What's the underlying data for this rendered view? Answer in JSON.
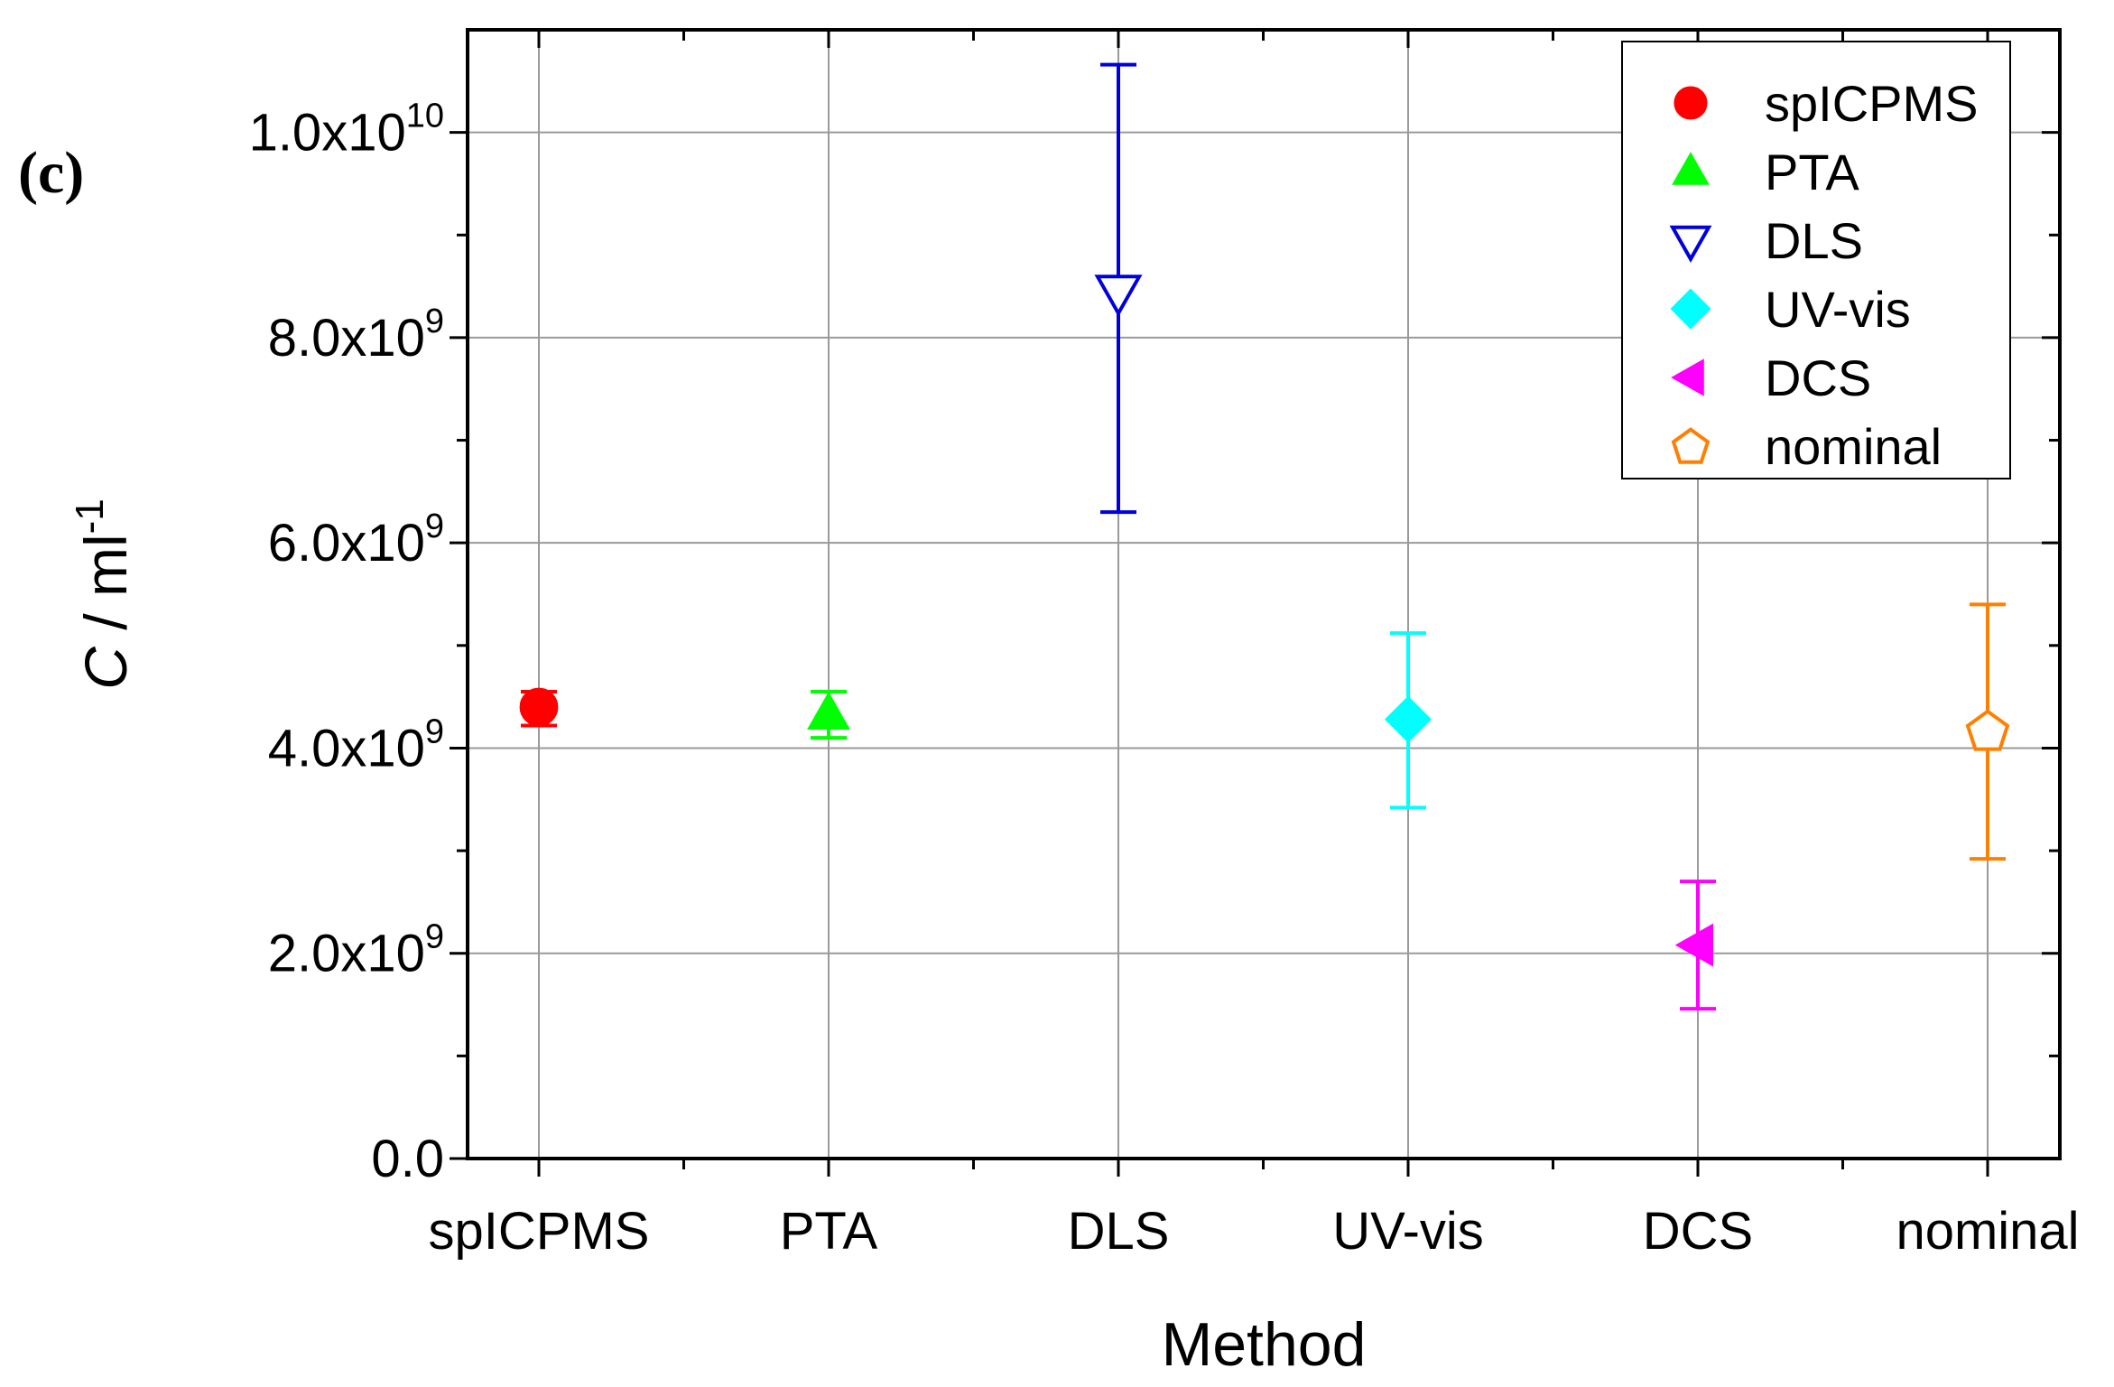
{
  "panel_label": "(c)",
  "chart_data": {
    "type": "scatter",
    "title": "",
    "xlabel": "Method",
    "ylabel_main": "C",
    "ylabel_unit": " / ml",
    "ylabel_sup": "-1",
    "ylim": [
      0,
      11000000000.0
    ],
    "grid": true,
    "legend_position": "top-right",
    "categories": [
      "spICPMS",
      "PTA",
      "DLS",
      "UV-vis",
      "DCS",
      "nominal"
    ],
    "y_ticks": [
      {
        "value": 0,
        "mantissa": "0.0",
        "exp": ""
      },
      {
        "value": 2000000000.0,
        "mantissa": "2.0x10",
        "exp": "9"
      },
      {
        "value": 4000000000.0,
        "mantissa": "4.0x10",
        "exp": "9"
      },
      {
        "value": 6000000000.0,
        "mantissa": "6.0x10",
        "exp": "9"
      },
      {
        "value": 8000000000.0,
        "mantissa": "8.0x10",
        "exp": "9"
      },
      {
        "value": 10000000000.0,
        "mantissa": "1.0x10",
        "exp": "10"
      }
    ],
    "series": [
      {
        "name": "spICPMS",
        "value": 4400000000.0,
        "err_low": 4220000000.0,
        "err_high": 4550000000.0,
        "color": "#ff0000",
        "marker": "circle",
        "filled": true
      },
      {
        "name": "PTA",
        "value": 4330000000.0,
        "err_low": 4100000000.0,
        "err_high": 4550000000.0,
        "color": "#00ff00",
        "marker": "triangle-up",
        "filled": true
      },
      {
        "name": "DLS",
        "value": 8450000000.0,
        "err_low": 6300000000.0,
        "err_high": 10660000000.0,
        "color": "#0000dd",
        "marker": "triangle-down",
        "filled": false
      },
      {
        "name": "UV-vis",
        "value": 4280000000.0,
        "err_low": 3420000000.0,
        "err_high": 5120000000.0,
        "color": "#00ffff",
        "marker": "diamond",
        "filled": true
      },
      {
        "name": "DCS",
        "value": 2080000000.0,
        "err_low": 1460000000.0,
        "err_high": 2700000000.0,
        "color": "#ff00ff",
        "marker": "triangle-left",
        "filled": true
      },
      {
        "name": "nominal",
        "value": 4170000000.0,
        "err_low": 2920000000.0,
        "err_high": 5400000000.0,
        "color": "#ff8000",
        "marker": "pentagon",
        "filled": false
      }
    ]
  }
}
